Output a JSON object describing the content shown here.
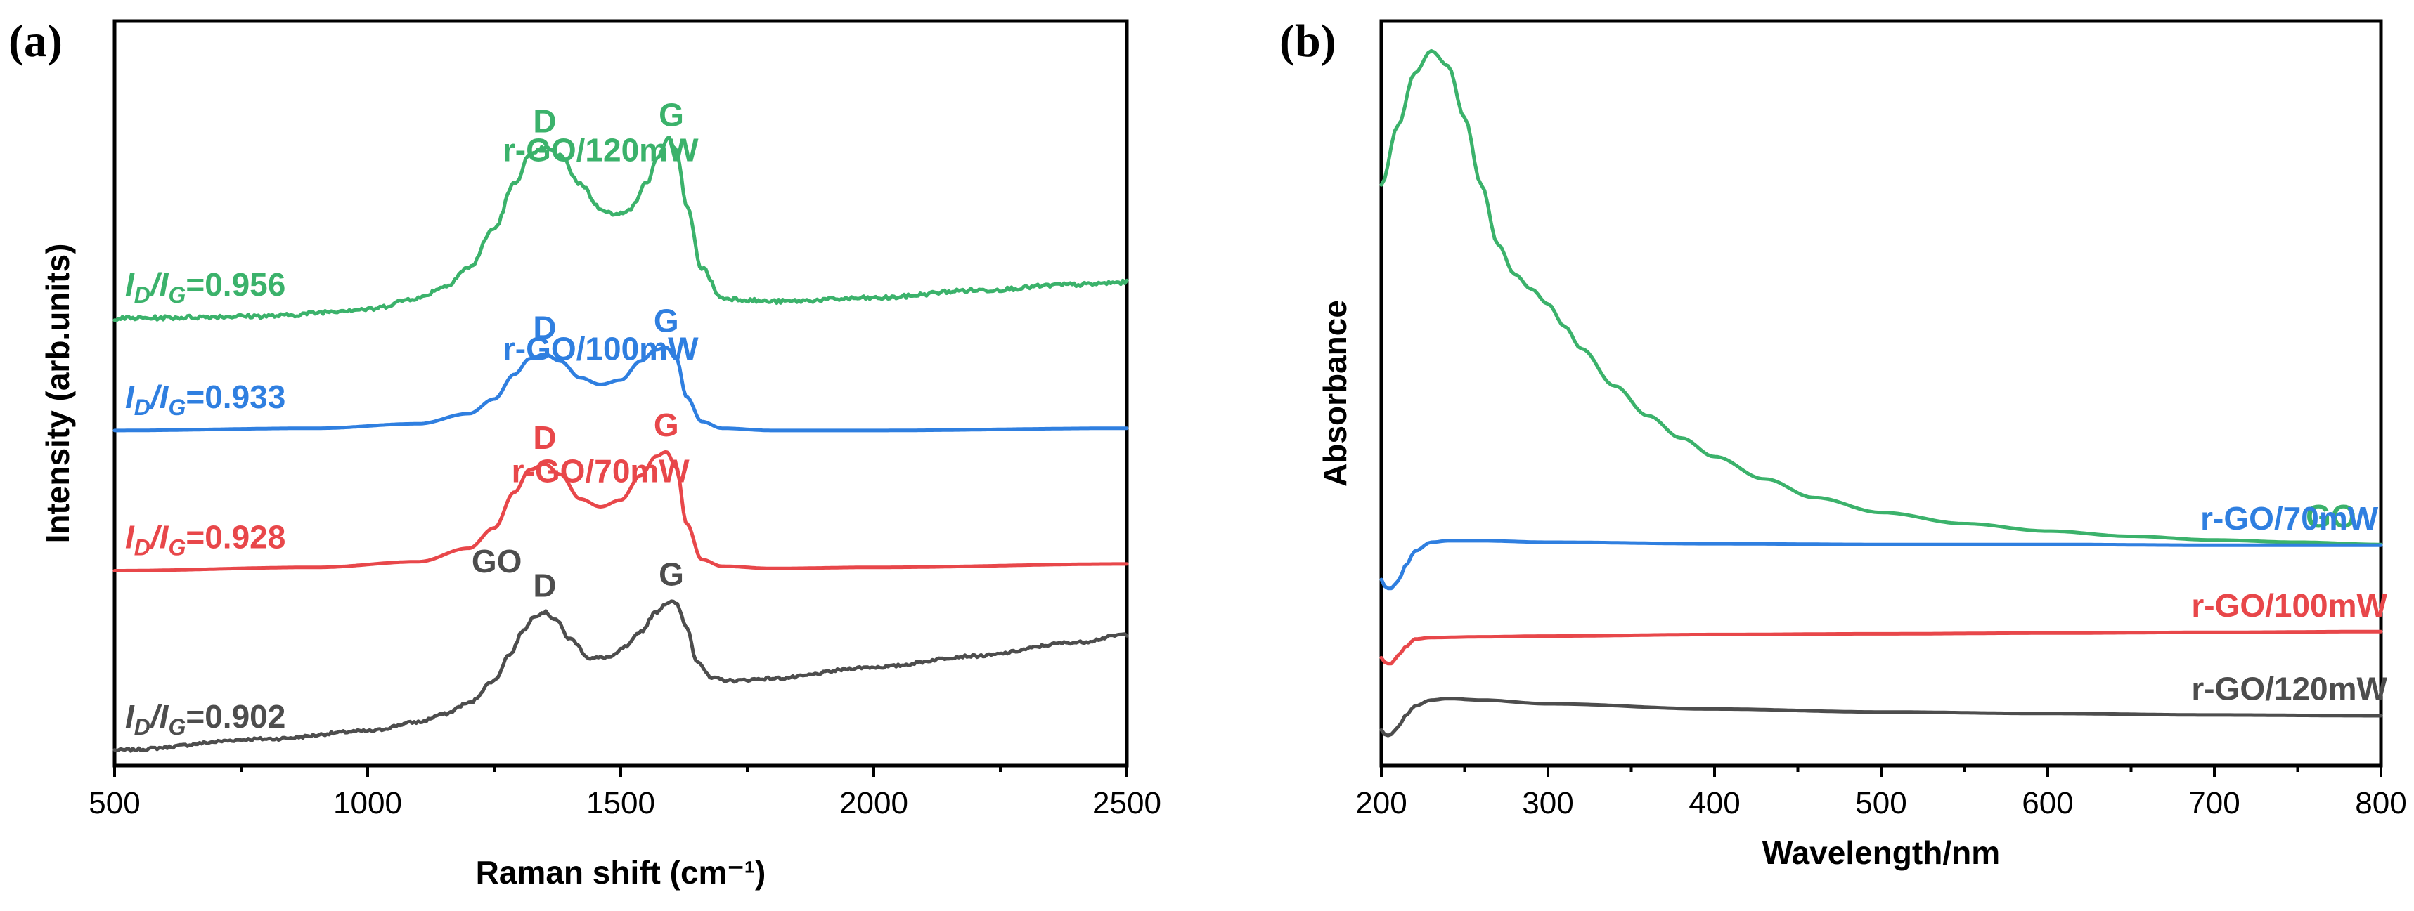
{
  "chart_data": [
    {
      "panel": "(a)",
      "type": "line",
      "title": "",
      "xlabel": "Raman shift (cm⁻¹)",
      "ylabel": "Intensity (arb.units)",
      "xlim": [
        500,
        2500
      ],
      "xticks": [
        500,
        1000,
        1500,
        2000,
        2500
      ],
      "ylim": [
        0,
        6.5
      ],
      "yticks_shown": false,
      "series": [
        {
          "name": "GO",
          "color": "#4d4d4d",
          "offset": 0.0,
          "ratio_prefix": "I",
          "ratio_sub1": "D",
          "ratio_mid": "/I",
          "ratio_sub2": "G",
          "ratio_value": "=0.902",
          "peaks": [
            {
              "label": "D",
              "x": 1350
            },
            {
              "label": "G",
              "x": 1600
            }
          ],
          "x": [
            500,
            800,
            1000,
            1100,
            1150,
            1200,
            1250,
            1280,
            1310,
            1330,
            1350,
            1370,
            1400,
            1440,
            1480,
            1510,
            1540,
            1570,
            1590,
            1600,
            1610,
            1630,
            1650,
            1680,
            1720,
            1800,
            2000,
            2200,
            2400,
            2500
          ],
          "y": [
            0.0,
            0.1,
            0.17,
            0.25,
            0.32,
            0.42,
            0.62,
            0.85,
            1.08,
            1.2,
            1.23,
            1.17,
            0.99,
            0.82,
            0.83,
            0.92,
            1.06,
            1.23,
            1.31,
            1.33,
            1.3,
            1.1,
            0.8,
            0.64,
            0.62,
            0.64,
            0.74,
            0.84,
            0.96,
            1.03
          ],
          "noise": 0.012
        },
        {
          "name": "r-GO/70mW",
          "color": "#e8474a",
          "offset": 1.6,
          "ratio_prefix": "I",
          "ratio_sub1": "D",
          "ratio_mid": "/I",
          "ratio_sub2": "G",
          "ratio_value": "=0.928",
          "peaks": [
            {
              "label": "D",
              "x": 1350
            },
            {
              "label": "G",
              "x": 1590
            }
          ],
          "x": [
            500,
            900,
            1100,
            1200,
            1250,
            1290,
            1320,
            1350,
            1380,
            1420,
            1460,
            1500,
            1540,
            1570,
            1590,
            1610,
            1630,
            1660,
            1700,
            1800,
            2000,
            2500
          ],
          "y": [
            0.0,
            0.03,
            0.08,
            0.2,
            0.38,
            0.7,
            0.9,
            0.95,
            0.86,
            0.64,
            0.57,
            0.63,
            0.85,
            1.02,
            1.06,
            0.92,
            0.42,
            0.1,
            0.04,
            0.02,
            0.03,
            0.06
          ],
          "noise": 0.0
        },
        {
          "name": "r-GO/100mW",
          "color": "#2f7fe0",
          "offset": 2.85,
          "ratio_prefix": "I",
          "ratio_sub1": "D",
          "ratio_mid": "/I",
          "ratio_sub2": "G",
          "ratio_value": "=0.933",
          "peaks": [
            {
              "label": "D",
              "x": 1350
            },
            {
              "label": "G",
              "x": 1590
            }
          ],
          "x": [
            500,
            900,
            1100,
            1200,
            1250,
            1290,
            1320,
            1350,
            1380,
            1420,
            1460,
            1500,
            1540,
            1570,
            1590,
            1610,
            1630,
            1660,
            1700,
            1800,
            2000,
            2500
          ],
          "y": [
            0.0,
            0.02,
            0.06,
            0.15,
            0.28,
            0.5,
            0.64,
            0.68,
            0.62,
            0.47,
            0.41,
            0.45,
            0.62,
            0.72,
            0.74,
            0.64,
            0.3,
            0.08,
            0.02,
            0.0,
            0.0,
            0.02
          ],
          "noise": 0.0
        },
        {
          "name": "r-GO/120mW",
          "color": "#3bb26b",
          "offset": 3.85,
          "ratio_prefix": "I",
          "ratio_sub1": "D",
          "ratio_mid": "/I",
          "ratio_sub2": "G",
          "ratio_value": "=0.956",
          "peaks": [
            {
              "label": "D",
              "x": 1350
            },
            {
              "label": "G",
              "x": 1600
            }
          ],
          "x": [
            500,
            800,
            1000,
            1100,
            1150,
            1200,
            1250,
            1290,
            1320,
            1350,
            1380,
            1420,
            1460,
            1490,
            1520,
            1550,
            1575,
            1595,
            1610,
            1630,
            1660,
            1700,
            1800,
            2000,
            2200,
            2400,
            2500
          ],
          "y": [
            0.0,
            0.02,
            0.08,
            0.18,
            0.28,
            0.45,
            0.8,
            1.2,
            1.45,
            1.52,
            1.45,
            1.2,
            0.98,
            0.92,
            0.98,
            1.2,
            1.45,
            1.6,
            1.5,
            1.0,
            0.45,
            0.18,
            0.15,
            0.18,
            0.25,
            0.3,
            0.32
          ],
          "noise": 0.018
        }
      ]
    },
    {
      "panel": "(b)",
      "type": "line",
      "title": "",
      "xlabel": "Wavelength/nm",
      "ylabel": "Absorbance",
      "xlim": [
        200,
        800
      ],
      "xticks": [
        200,
        300,
        400,
        500,
        600,
        700,
        800
      ],
      "ylim": [
        0,
        10
      ],
      "yticks_shown": false,
      "series": [
        {
          "name": "GO",
          "color": "#3bb26b",
          "x": [
            200,
            210,
            220,
            230,
            240,
            250,
            260,
            270,
            280,
            290,
            300,
            310,
            320,
            340,
            360,
            380,
            400,
            430,
            460,
            500,
            550,
            600,
            650,
            700,
            750,
            800
          ],
          "y": [
            7.8,
            8.6,
            9.3,
            9.6,
            9.4,
            8.7,
            7.8,
            7.0,
            6.6,
            6.4,
            6.2,
            5.9,
            5.6,
            5.1,
            4.7,
            4.4,
            4.15,
            3.85,
            3.6,
            3.4,
            3.25,
            3.15,
            3.08,
            3.03,
            3.0,
            2.97
          ]
        },
        {
          "name": "r-GO/70mW",
          "color": "#2f7fe0",
          "x": [
            200,
            203,
            206,
            210,
            215,
            220,
            230,
            240,
            260,
            300,
            400,
            500,
            600,
            700,
            800
          ],
          "y": [
            2.5,
            2.38,
            2.38,
            2.48,
            2.7,
            2.88,
            3.0,
            3.02,
            3.02,
            3.0,
            2.98,
            2.97,
            2.97,
            2.96,
            2.96
          ]
        },
        {
          "name": "r-GO/100mW",
          "color": "#e8474a",
          "x": [
            200,
            203,
            206,
            210,
            215,
            220,
            230,
            260,
            300,
            400,
            500,
            600,
            700,
            800
          ],
          "y": [
            1.45,
            1.37,
            1.37,
            1.48,
            1.6,
            1.7,
            1.72,
            1.73,
            1.74,
            1.76,
            1.77,
            1.78,
            1.79,
            1.8
          ]
        },
        {
          "name": "r-GO/120mW",
          "color": "#4d4d4d",
          "x": [
            200,
            203,
            206,
            210,
            215,
            220,
            230,
            240,
            260,
            300,
            400,
            500,
            600,
            700,
            800
          ],
          "y": [
            0.48,
            0.4,
            0.42,
            0.52,
            0.68,
            0.8,
            0.88,
            0.9,
            0.88,
            0.83,
            0.76,
            0.72,
            0.7,
            0.68,
            0.67
          ]
        }
      ],
      "inline_labels": [
        {
          "series": "GO",
          "text": "GO"
        },
        {
          "series": "r-GO/70mW",
          "text": "r-GO/70mW"
        },
        {
          "series": "r-GO/100mW",
          "text": "r-GO/100mW"
        },
        {
          "series": "r-GO/120mW",
          "text": "r-GO/120mW"
        }
      ]
    }
  ]
}
